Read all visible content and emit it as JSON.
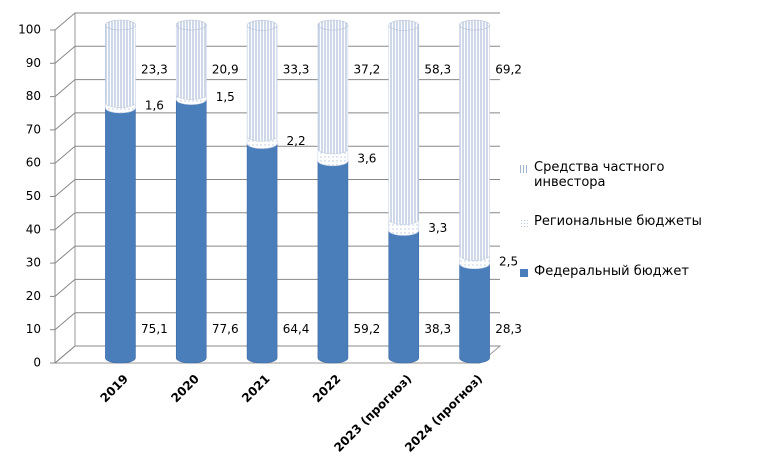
{
  "chart_data": {
    "type": "bar",
    "stacked": true,
    "categories": [
      "2019",
      "2020",
      "2021",
      "2022",
      "2023 (прогноз)",
      "2024 (прогноз)"
    ],
    "series": [
      {
        "name": "Федеральный бюджет",
        "color": "#4a7ebb",
        "fill": "solid",
        "values": [
          75.1,
          77.6,
          64.4,
          59.2,
          38.3,
          28.3
        ],
        "value_labels": [
          "75,1",
          "77,6",
          "64,4",
          "59,2",
          "38,3",
          "28,3"
        ]
      },
      {
        "name": "Региональные бюджеты",
        "color": "#b8c8e0",
        "fill": "dots",
        "values": [
          1.6,
          1.5,
          2.2,
          3.6,
          3.3,
          2.5
        ],
        "value_labels": [
          "1,6",
          "1,5",
          "2,2",
          "3,6",
          "3,3",
          "2,5"
        ]
      },
      {
        "name": "Средства частного инвестора",
        "color": "#9fb2d0",
        "fill": "stripes",
        "values": [
          23.3,
          20.9,
          33.3,
          37.2,
          58.3,
          69.2
        ],
        "value_labels": [
          "23,3",
          "20,9",
          "33,3",
          "37,2",
          "58,3",
          "69,2"
        ]
      }
    ],
    "ylim": [
      0,
      100
    ],
    "yticks": [
      0,
      10,
      20,
      30,
      40,
      50,
      60,
      70,
      80,
      90,
      100
    ],
    "grid": true,
    "legend": "right"
  }
}
